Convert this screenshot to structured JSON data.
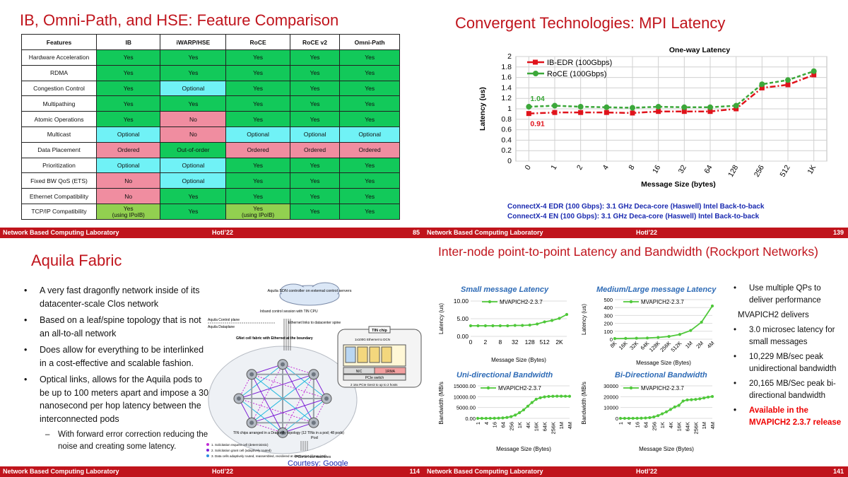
{
  "slide1": {
    "title": "IB, Omni-Path, and HSE: Feature Comparison",
    "headers": [
      "Features",
      "IB",
      "iWARP/HSE",
      "RoCE",
      "RoCE v2",
      "Omni-Path"
    ],
    "rows": [
      {
        "feature": "Hardware Acceleration",
        "cells": [
          "Yes",
          "Yes",
          "Yes",
          "Yes",
          "Yes"
        ]
      },
      {
        "feature": "RDMA",
        "cells": [
          "Yes",
          "Yes",
          "Yes",
          "Yes",
          "Yes"
        ]
      },
      {
        "feature": "Congestion Control",
        "cells": [
          "Yes",
          "Optional",
          "Yes",
          "Yes",
          "Yes"
        ]
      },
      {
        "feature": "Multipathing",
        "cells": [
          "Yes",
          "Yes",
          "Yes",
          "Yes",
          "Yes"
        ]
      },
      {
        "feature": "Atomic Operations",
        "cells": [
          "Yes",
          "No",
          "Yes",
          "Yes",
          "Yes"
        ]
      },
      {
        "feature": "Multicast",
        "cells": [
          "Optional",
          "No",
          "Optional",
          "Optional",
          "Optional"
        ]
      },
      {
        "feature": "Data Placement",
        "cells": [
          "Ordered",
          "Out-of-order",
          "Ordered",
          "Ordered",
          "Ordered"
        ]
      },
      {
        "feature": "Prioritization",
        "cells": [
          "Optional",
          "Optional",
          "Yes",
          "Yes",
          "Yes"
        ]
      },
      {
        "feature": "Fixed BW QoS (ETS)",
        "cells": [
          "No",
          "Optional",
          "Yes",
          "Yes",
          "Yes"
        ]
      },
      {
        "feature": "Ethernet Compatibility",
        "cells": [
          "No",
          "Yes",
          "Yes",
          "Yes",
          "Yes"
        ]
      },
      {
        "feature": "TCP/IP Compatibility",
        "cells": [
          "Yes",
          "Yes",
          "Yes",
          "Yes",
          "Yes"
        ]
      }
    ],
    "ipoib_note": "(using IPoIB)",
    "footer": {
      "lab": "Network Based Computing Laboratory",
      "conf": "HotI’22",
      "page": "85"
    }
  },
  "slide2": {
    "title": "Convergent Technologies: MPI Latency",
    "note1": "ConnectX-4 EDR (100 Gbps): 3.1 GHz Deca-core (Haswell) Intel Back-to-back",
    "note2": "ConnectX-4 EN (100 Gbps): 3.1 GHz Deca-core (Haswell) Intel Back-to-back",
    "footer": {
      "lab": "Network Based Computing Laboratory",
      "conf": "HotI’22",
      "page": "139"
    }
  },
  "slide3": {
    "title": "Aquila Fabric",
    "bullets": [
      {
        "text": "A very fast dragonfly network inside of its datacenter-scale Clos network"
      },
      {
        "text": "Based on a leaf/spine topology that is not an all-to-all network"
      },
      {
        "text": "Does allow for everything to be interlinked in a cost-effective and scalable fashion."
      },
      {
        "text": "Optical links, allows for the Aquila pods to be up to 100 meters apart and impose a 30 nanosecond per hop latency between the interconnected pods"
      }
    ],
    "sub_bullet": "With forward error correction reducing the noise and creating some latency.",
    "diagram": {
      "sdn": "Aquila SDN controller on external control servers",
      "inband": "Inband control session with TIN CPU",
      "control_plane": "Aquila Control plane",
      "dataplane": "Aquila Dataplane",
      "eth_links": "Ethernet links to datacenter spine",
      "gnet": "GNet cell fabric with Ethernet at the boundary",
      "tin_chip": "TIN chip",
      "eth_dcn": "1x100G Ethernet to DCN",
      "nic": "NIC",
      "rma": "1RMA",
      "pcie_switch": "PCIe switch",
      "pcie_hosts": "2 16x PCIe Gen3 to up to 2 hosts",
      "tin_dragonfly": "TIN chips arranged in a Dragonfly topology (12 TINs in a pod; 48 pods)",
      "legend1": "1. Solicitation request cell (deterministic)",
      "legend2": "2. Solicitation grant cell (adaptively routed)",
      "legend3": "3. Data cells adaptively routed, reassembled, reordered at destination (if required)",
      "pcie_machines": "PCIe to host machines",
      "pod": "Pod"
    },
    "courtesy": "Courtesy:",
    "courtesy_link": "Google",
    "footer": {
      "lab": "Network Based Computing Laboratory",
      "conf": "HotI’22",
      "page": "114"
    }
  },
  "slide4": {
    "title": "Inter-node point-to-point Latency and Bandwidth (Rockport Networks)",
    "bullets": [
      {
        "text": "Use multiple QPs to deliver performance"
      },
      {
        "text": "3.0 microsec latency for small messages"
      },
      {
        "text": "10,229 MB/sec peak unidirectional bandwidth"
      },
      {
        "text": "20,165 MB/Sec peak bi-directional bandwidth"
      },
      {
        "text": "Available in the MVAPICH2 2.3.7 release"
      }
    ],
    "delivers": "MVAPICH2 delivers",
    "footer": {
      "lab": "Network Based Computing Laboratory",
      "conf": "HotI’22",
      "page": "141"
    }
  },
  "chart_data": [
    {
      "type": "line",
      "title": "One-way Latency",
      "xlabel": "Message Size (bytes)",
      "ylabel": "Latency (us)",
      "categories": [
        "0",
        "1",
        "2",
        "4",
        "8",
        "16",
        "32",
        "64",
        "128",
        "256",
        "512",
        "1K"
      ],
      "ylim": [
        0,
        2
      ],
      "yticks": [
        "0",
        "0.2",
        "0.4",
        "0.6",
        "0.8",
        "1",
        "1.2",
        "1.4",
        "1.6",
        "1.8",
        "2"
      ],
      "grid": true,
      "legend": "top-left",
      "series": [
        {
          "name": "IB-EDR (100Gbps)",
          "color": "#e0131b",
          "values": [
            0.91,
            0.93,
            0.93,
            0.93,
            0.92,
            0.95,
            0.95,
            0.95,
            1.0,
            1.4,
            1.46,
            1.65
          ]
        },
        {
          "name": "RoCE (100Gbps)",
          "color": "#3ca83a",
          "values": [
            1.04,
            1.06,
            1.04,
            1.03,
            1.02,
            1.04,
            1.03,
            1.03,
            1.06,
            1.47,
            1.55,
            1.72
          ]
        }
      ],
      "annotations": [
        "1.04",
        "0.91"
      ]
    },
    {
      "type": "line",
      "title": "Small message Latency",
      "xlabel": "Message Size (Bytes)",
      "ylabel": "Latency (us)",
      "categories": [
        "0",
        "1",
        "2",
        "4",
        "8",
        "16",
        "32",
        "64",
        "128",
        "256",
        "512",
        "1K",
        "2K",
        "4K"
      ],
      "xticklabels": [
        "0",
        "2",
        "8",
        "32",
        "128",
        "512",
        "2K"
      ],
      "ylim": [
        0,
        10
      ],
      "yticks": [
        "0.00",
        "5.00",
        "10.00"
      ],
      "series": [
        {
          "name": "MVAPICH2-2.3.7",
          "color": "#4fc83a",
          "values": [
            3.0,
            3.0,
            3.0,
            3.0,
            3.0,
            3.0,
            3.1,
            3.1,
            3.2,
            3.5,
            4.1,
            4.5,
            5.1,
            6.2
          ]
        }
      ]
    },
    {
      "type": "line",
      "title": "Medium/Large message Latency",
      "xlabel": "Message Size (Bytes)",
      "ylabel": "Latency (us)",
      "categories": [
        "8K",
        "16K",
        "32K",
        "64K",
        "128K",
        "256K",
        "512K",
        "1M",
        "2M",
        "4M"
      ],
      "ylim": [
        0,
        500
      ],
      "yticks": [
        "0",
        "100",
        "200",
        "300",
        "400",
        "500"
      ],
      "series": [
        {
          "name": "MVAPICH2-2.3.7",
          "color": "#4fc83a",
          "values": [
            8,
            10,
            12,
            15,
            22,
            35,
            60,
            110,
            215,
            420
          ]
        }
      ]
    },
    {
      "type": "line",
      "title": "Uni-directional Bandwidth",
      "xlabel": "Message Size (Bytes)",
      "ylabel": "Bandwidth (MB/s)",
      "categories": [
        "1",
        "2",
        "4",
        "8",
        "16",
        "32",
        "64",
        "128",
        "256",
        "512",
        "1K",
        "2K",
        "4K",
        "8K",
        "16K",
        "32K",
        "64K",
        "128K",
        "256K",
        "512K",
        "1M",
        "2M",
        "4M"
      ],
      "xticklabels": [
        "1",
        "4",
        "16",
        "64",
        "256",
        "1K",
        "4K",
        "16K",
        "64K",
        "256K",
        "1M",
        "4M"
      ],
      "ylim": [
        0,
        15000
      ],
      "yticks": [
        "0.00",
        "5000.00",
        "10000.00",
        "15000.00"
      ],
      "series": [
        {
          "name": "MVAPICH2-2.3.7",
          "color": "#4fc83a",
          "values": [
            3,
            6,
            12,
            25,
            50,
            100,
            200,
            400,
            800,
            1500,
            2600,
            3900,
            5600,
            7300,
            8800,
            9500,
            9900,
            10100,
            10200,
            10229,
            10220,
            10210,
            10200
          ]
        }
      ]
    },
    {
      "type": "line",
      "title": "Bi-Directional Bandwidth",
      "xlabel": "Message Size (Bytes)",
      "ylabel": "Bandwidth (MB/s)",
      "categories": [
        "1",
        "2",
        "4",
        "8",
        "16",
        "32",
        "64",
        "128",
        "256",
        "512",
        "1K",
        "2K",
        "4K",
        "8K",
        "16K",
        "32K",
        "64K",
        "128K",
        "256K",
        "512K",
        "1M",
        "2M",
        "4M"
      ],
      "xticklabels": [
        "1",
        "4",
        "16",
        "64",
        "256",
        "1K",
        "4K",
        "16K",
        "64K",
        "256K",
        "1M",
        "4M"
      ],
      "ylim": [
        0,
        30000
      ],
      "yticks": [
        "0",
        "10000",
        "20000",
        "30000"
      ],
      "series": [
        {
          "name": "MVAPICH2-2.3.7",
          "color": "#4fc83a",
          "values": [
            5,
            10,
            20,
            40,
            80,
            160,
            320,
            650,
            1300,
            2500,
            4200,
            6000,
            8200,
            10500,
            12000,
            16000,
            17000,
            17200,
            17500,
            18000,
            18800,
            19600,
            20165
          ]
        }
      ]
    }
  ]
}
